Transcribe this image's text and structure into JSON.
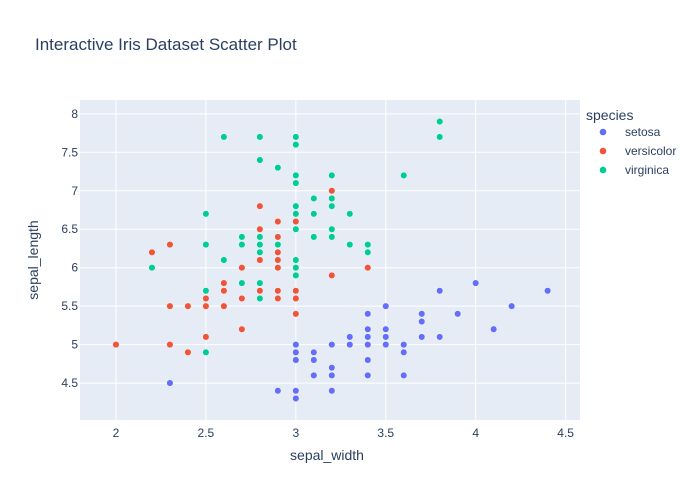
{
  "chart_data": {
    "type": "scatter",
    "title": "Interactive  Iris Dataset Scatter Plot",
    "xlabel": "sepal_width",
    "ylabel": "sepal_length",
    "xlim": [
      1.8,
      4.58
    ],
    "ylim": [
      4.02,
      8.18
    ],
    "xticks": [
      2,
      2.5,
      3,
      3.5,
      4,
      4.5
    ],
    "xtick_labels": [
      "2",
      "2.5",
      "3",
      "3.5",
      "4",
      "4.5"
    ],
    "yticks": [
      4.5,
      5,
      5.5,
      6,
      6.5,
      7,
      7.5,
      8
    ],
    "ytick_labels": [
      "4.5",
      "5",
      "5.5",
      "6",
      "6.5",
      "7",
      "7.5",
      "8"
    ],
    "grid": true,
    "legend_title": "species",
    "legend_position": "right",
    "plot_background": "#e5ecf6",
    "series": [
      {
        "name": "setosa",
        "color": "#636efa",
        "points": [
          [
            3.5,
            5.1
          ],
          [
            3.0,
            4.9
          ],
          [
            3.2,
            4.7
          ],
          [
            3.1,
            4.6
          ],
          [
            3.6,
            5.0
          ],
          [
            3.9,
            5.4
          ],
          [
            3.4,
            4.6
          ],
          [
            3.4,
            5.0
          ],
          [
            2.9,
            4.4
          ],
          [
            3.1,
            4.9
          ],
          [
            3.7,
            5.4
          ],
          [
            3.4,
            4.8
          ],
          [
            3.0,
            4.8
          ],
          [
            3.0,
            4.3
          ],
          [
            4.0,
            5.8
          ],
          [
            4.4,
            5.7
          ],
          [
            3.9,
            5.4
          ],
          [
            3.5,
            5.1
          ],
          [
            3.8,
            5.7
          ],
          [
            3.8,
            5.1
          ],
          [
            3.4,
            5.4
          ],
          [
            3.7,
            5.1
          ],
          [
            3.6,
            4.6
          ],
          [
            3.3,
            5.1
          ],
          [
            3.4,
            4.8
          ],
          [
            3.0,
            5.0
          ],
          [
            3.4,
            5.0
          ],
          [
            3.5,
            5.2
          ],
          [
            3.4,
            5.2
          ],
          [
            3.2,
            4.7
          ],
          [
            3.1,
            4.8
          ],
          [
            3.4,
            5.4
          ],
          [
            4.1,
            5.2
          ],
          [
            4.2,
            5.5
          ],
          [
            3.1,
            4.9
          ],
          [
            3.2,
            5.0
          ],
          [
            3.5,
            5.5
          ],
          [
            3.6,
            4.9
          ],
          [
            3.0,
            4.4
          ],
          [
            3.4,
            5.1
          ],
          [
            3.5,
            5.0
          ],
          [
            2.3,
            4.5
          ],
          [
            3.2,
            4.4
          ],
          [
            3.5,
            5.0
          ],
          [
            3.8,
            5.1
          ],
          [
            3.0,
            4.8
          ],
          [
            3.8,
            5.1
          ],
          [
            3.2,
            4.6
          ],
          [
            3.7,
            5.3
          ],
          [
            3.3,
            5.0
          ]
        ]
      },
      {
        "name": "versicolor",
        "color": "#ef553b",
        "points": [
          [
            3.2,
            7.0
          ],
          [
            3.2,
            6.4
          ],
          [
            3.1,
            6.9
          ],
          [
            2.3,
            5.5
          ],
          [
            2.8,
            6.5
          ],
          [
            2.8,
            5.7
          ],
          [
            3.3,
            6.3
          ],
          [
            2.4,
            4.9
          ],
          [
            2.9,
            6.6
          ],
          [
            2.7,
            5.2
          ],
          [
            2.0,
            5.0
          ],
          [
            3.0,
            5.9
          ],
          [
            2.2,
            6.0
          ],
          [
            2.9,
            6.1
          ],
          [
            2.9,
            5.6
          ],
          [
            3.1,
            6.7
          ],
          [
            3.0,
            5.6
          ],
          [
            2.7,
            5.8
          ],
          [
            2.2,
            6.2
          ],
          [
            2.5,
            5.6
          ],
          [
            3.2,
            5.9
          ],
          [
            2.8,
            6.1
          ],
          [
            2.5,
            6.3
          ],
          [
            2.8,
            6.1
          ],
          [
            2.9,
            6.4
          ],
          [
            3.0,
            6.6
          ],
          [
            2.8,
            6.8
          ],
          [
            3.0,
            6.7
          ],
          [
            2.9,
            6.0
          ],
          [
            2.6,
            5.7
          ],
          [
            2.4,
            5.5
          ],
          [
            2.4,
            5.5
          ],
          [
            2.7,
            5.8
          ],
          [
            2.7,
            6.0
          ],
          [
            3.0,
            5.4
          ],
          [
            3.4,
            6.0
          ],
          [
            3.1,
            6.7
          ],
          [
            2.3,
            6.3
          ],
          [
            3.0,
            5.6
          ],
          [
            2.5,
            5.5
          ],
          [
            2.6,
            5.5
          ],
          [
            3.0,
            6.1
          ],
          [
            2.6,
            5.8
          ],
          [
            2.3,
            5.0
          ],
          [
            2.7,
            5.6
          ],
          [
            3.0,
            5.7
          ],
          [
            2.9,
            5.7
          ],
          [
            2.9,
            6.2
          ],
          [
            2.5,
            5.1
          ],
          [
            2.8,
            5.7
          ]
        ]
      },
      {
        "name": "virginica",
        "color": "#00cc96",
        "points": [
          [
            3.3,
            6.3
          ],
          [
            2.7,
            5.8
          ],
          [
            3.0,
            7.1
          ],
          [
            2.9,
            6.3
          ],
          [
            3.0,
            6.5
          ],
          [
            3.0,
            7.6
          ],
          [
            2.5,
            4.9
          ],
          [
            2.9,
            7.3
          ],
          [
            2.5,
            6.7
          ],
          [
            3.6,
            7.2
          ],
          [
            3.2,
            6.5
          ],
          [
            2.7,
            6.4
          ],
          [
            3.0,
            6.8
          ],
          [
            2.5,
            5.7
          ],
          [
            2.8,
            5.8
          ],
          [
            3.2,
            6.4
          ],
          [
            3.0,
            6.5
          ],
          [
            3.8,
            7.7
          ],
          [
            2.6,
            7.7
          ],
          [
            2.2,
            6.0
          ],
          [
            3.2,
            6.9
          ],
          [
            2.8,
            5.6
          ],
          [
            2.8,
            7.7
          ],
          [
            2.7,
            6.3
          ],
          [
            3.3,
            6.7
          ],
          [
            3.2,
            7.2
          ],
          [
            2.8,
            6.2
          ],
          [
            3.0,
            6.1
          ],
          [
            2.8,
            6.4
          ],
          [
            3.0,
            7.2
          ],
          [
            2.8,
            7.4
          ],
          [
            3.8,
            7.9
          ],
          [
            2.8,
            6.4
          ],
          [
            2.8,
            6.3
          ],
          [
            2.6,
            6.1
          ],
          [
            3.0,
            7.7
          ],
          [
            3.4,
            6.3
          ],
          [
            3.1,
            6.4
          ],
          [
            3.0,
            6.0
          ],
          [
            3.1,
            6.9
          ],
          [
            3.1,
            6.7
          ],
          [
            3.1,
            6.9
          ],
          [
            2.7,
            5.8
          ],
          [
            3.2,
            6.8
          ],
          [
            3.3,
            6.7
          ],
          [
            3.0,
            6.7
          ],
          [
            2.5,
            6.3
          ],
          [
            3.0,
            6.5
          ],
          [
            3.4,
            6.2
          ],
          [
            3.0,
            5.9
          ]
        ]
      }
    ]
  }
}
